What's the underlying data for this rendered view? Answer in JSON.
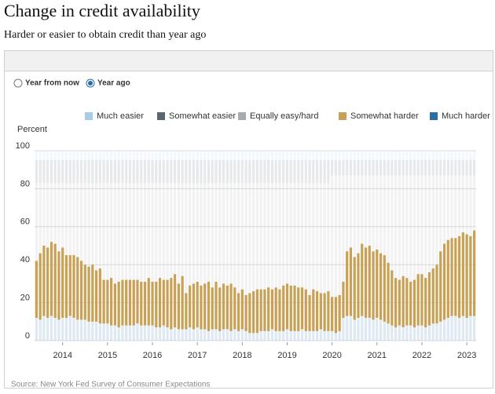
{
  "header": {
    "title": "Change in credit availability",
    "subtitle": "Harder or easier to obtain credit than year ago"
  },
  "controls": {
    "options": [
      {
        "label": "Year from now",
        "selected": false
      },
      {
        "label": "Year ago",
        "selected": true
      }
    ]
  },
  "source": "Source: New York Fed Survey of Consumer Expectations",
  "chart_data": {
    "type": "stacked_bar",
    "y_label": "Percent",
    "ylim": [
      0,
      100
    ],
    "yticks": [
      0,
      20,
      40,
      60,
      80,
      100
    ],
    "grid": true,
    "highlight_series": 3,
    "categories": [
      null,
      null,
      null,
      null,
      null,
      null,
      null,
      "2014",
      null,
      null,
      null,
      null,
      null,
      null,
      null,
      null,
      null,
      null,
      null,
      "2015",
      null,
      null,
      null,
      null,
      null,
      null,
      null,
      null,
      null,
      null,
      null,
      "2016",
      null,
      null,
      null,
      null,
      null,
      null,
      null,
      null,
      null,
      null,
      null,
      "2017",
      null,
      null,
      null,
      null,
      null,
      null,
      null,
      null,
      null,
      null,
      null,
      "2018",
      null,
      null,
      null,
      null,
      null,
      null,
      null,
      null,
      null,
      null,
      null,
      "2019",
      null,
      null,
      null,
      null,
      null,
      null,
      null,
      null,
      null,
      null,
      null,
      "2020",
      null,
      null,
      null,
      null,
      null,
      null,
      null,
      null,
      null,
      null,
      null,
      "2021",
      null,
      null,
      null,
      null,
      null,
      null,
      null,
      null,
      null,
      null,
      null,
      "2022",
      null,
      null,
      null,
      null,
      null,
      null,
      null,
      null,
      null,
      null,
      null,
      "2023",
      null,
      null
    ],
    "series": [
      {
        "name": "Much easier",
        "color": "#a6cde8",
        "values": [
          5,
          5,
          5,
          5,
          5,
          5,
          5,
          5,
          5,
          5,
          5,
          5,
          5,
          5,
          5,
          5,
          5,
          5,
          5,
          5,
          5,
          5,
          5,
          5,
          5,
          5,
          5,
          5,
          5,
          5,
          5,
          5,
          5,
          5,
          5,
          5,
          5,
          5,
          5,
          5,
          5,
          5,
          5,
          5,
          5,
          5,
          5,
          5,
          5,
          5,
          5,
          5,
          5,
          5,
          5,
          5,
          5,
          5,
          5,
          5,
          5,
          5,
          5,
          5,
          5,
          5,
          5,
          5,
          5,
          5,
          5,
          5,
          5,
          5,
          5,
          5,
          5,
          5,
          5,
          5,
          5,
          5,
          5,
          5,
          5,
          5,
          5,
          5,
          5,
          5,
          5,
          5,
          5,
          5,
          5,
          5,
          5,
          5,
          5,
          5,
          5,
          5,
          5,
          5,
          5,
          5,
          5,
          5,
          5,
          5,
          5,
          5,
          5,
          5,
          5,
          5,
          5,
          5
        ]
      },
      {
        "name": "Somewhat easier",
        "color": "#5b6770",
        "values": [
          12,
          12,
          12,
          12,
          12,
          12,
          12,
          12,
          12,
          12,
          12,
          12,
          12,
          12,
          12,
          12,
          12,
          12,
          12,
          12,
          12,
          12,
          12,
          12,
          12,
          12,
          12,
          12,
          12,
          12,
          12,
          12,
          12,
          12,
          12,
          12,
          12,
          12,
          12,
          12,
          12,
          12,
          12,
          12,
          12,
          12,
          12,
          12,
          12,
          12,
          12,
          12,
          12,
          12,
          12,
          12,
          12,
          12,
          12,
          12,
          12,
          12,
          12,
          12,
          12,
          12,
          12,
          12,
          12,
          12,
          12,
          12,
          12,
          12,
          12,
          12,
          12,
          12,
          12,
          8,
          8,
          8,
          8,
          8,
          8,
          8,
          8,
          8,
          8,
          8,
          8,
          8,
          8,
          8,
          8,
          8,
          8,
          8,
          8,
          8,
          8,
          8,
          8,
          8,
          8,
          8,
          8,
          8,
          8,
          8,
          8,
          8,
          8,
          8,
          8,
          8,
          8,
          8
        ]
      },
      {
        "name": "Equally easy/hard",
        "color": "#a6abb0",
        "values": [
          41,
          37,
          33,
          34,
          31,
          32,
          36,
          34,
          38,
          38,
          38,
          39,
          41,
          43,
          44,
          43,
          46,
          45,
          51,
          51,
          50,
          53,
          52,
          51,
          51,
          51,
          51,
          51,
          52,
          52,
          50,
          52,
          52,
          50,
          51,
          51,
          50,
          48,
          53,
          49,
          58,
          54,
          53,
          52,
          54,
          53,
          52,
          55,
          52,
          55,
          53,
          54,
          53,
          55,
          58,
          56,
          59,
          58,
          57,
          56,
          56,
          56,
          55,
          56,
          55,
          56,
          54,
          53,
          54,
          54,
          55,
          55,
          56,
          59,
          56,
          57,
          58,
          58,
          57,
          64,
          64,
          63,
          56,
          40,
          38,
          43,
          41,
          36,
          38,
          37,
          40,
          39,
          41,
          42,
          46,
          50,
          54,
          55,
          53,
          54,
          56,
          55,
          52,
          52,
          54,
          51,
          49,
          47,
          40,
          36,
          34,
          33,
          33,
          32,
          30,
          31,
          32,
          29
        ]
      },
      {
        "name": "Somewhat harder",
        "color": "#c8a156",
        "values": [
          30,
          35,
          37,
          37,
          39,
          39,
          36,
          37,
          33,
          32,
          33,
          33,
          31,
          29,
          29,
          30,
          27,
          29,
          23,
          23,
          25,
          22,
          24,
          24,
          24,
          24,
          24,
          23,
          23,
          23,
          25,
          23,
          24,
          26,
          24,
          25,
          27,
          28,
          24,
          28,
          19,
          22,
          24,
          24,
          23,
          24,
          26,
          22,
          25,
          23,
          24,
          23,
          25,
          22,
          20,
          21,
          19,
          21,
          22,
          23,
          22,
          22,
          23,
          21,
          23,
          22,
          24,
          24,
          24,
          24,
          23,
          22,
          22,
          19,
          22,
          21,
          19,
          20,
          21,
          18,
          19,
          19,
          19,
          34,
          36,
          33,
          34,
          38,
          37,
          38,
          36,
          36,
          35,
          35,
          32,
          29,
          26,
          24,
          27,
          25,
          23,
          25,
          27,
          27,
          26,
          28,
          29,
          31,
          37,
          40,
          41,
          41,
          41,
          43,
          44,
          44,
          42,
          45
        ]
      },
      {
        "name": "Much harder",
        "color": "#2a6ea6",
        "values": [
          12,
          11,
          13,
          12,
          13,
          12,
          11,
          12,
          12,
          13,
          12,
          11,
          11,
          11,
          10,
          10,
          10,
          9,
          9,
          9,
          8,
          8,
          7,
          8,
          8,
          8,
          8,
          9,
          8,
          8,
          8,
          8,
          7,
          7,
          8,
          7,
          6,
          7,
          6,
          6,
          6,
          7,
          6,
          7,
          6,
          6,
          5,
          6,
          6,
          5,
          6,
          6,
          5,
          6,
          5,
          6,
          5,
          4,
          4,
          4,
          5,
          5,
          5,
          6,
          5,
          5,
          5,
          6,
          5,
          5,
          5,
          6,
          5,
          5,
          5,
          5,
          6,
          5,
          5,
          5,
          4,
          5,
          12,
          13,
          13,
          11,
          12,
          13,
          12,
          12,
          11,
          12,
          11,
          10,
          9,
          8,
          7,
          8,
          7,
          8,
          8,
          7,
          8,
          8,
          7,
          8,
          9,
          9,
          10,
          11,
          12,
          13,
          13,
          12,
          13,
          12,
          13,
          13
        ]
      }
    ]
  }
}
